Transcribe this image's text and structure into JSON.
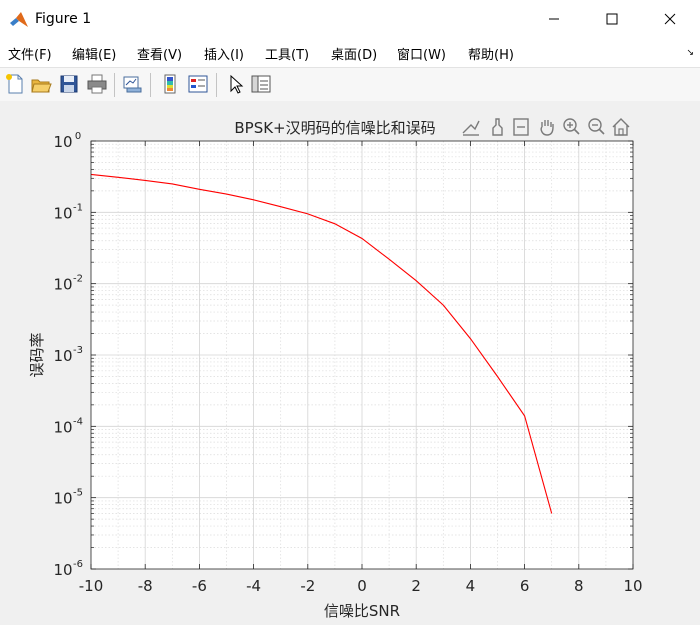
{
  "window": {
    "title": "Figure 1",
    "icon": "matlab-logo-icon",
    "buttons": [
      "minimize-icon",
      "maximize-icon",
      "close-icon"
    ]
  },
  "menu": {
    "items": [
      "文件(F)",
      "编辑(E)",
      "查看(V)",
      "插入(I)",
      "工具(T)",
      "桌面(D)",
      "窗口(W)",
      "帮助(H)"
    ]
  },
  "toolbar": {
    "icons": [
      "new-figure-icon",
      "open-file-icon",
      "save-icon",
      "print-icon",
      "link-plot-icon",
      "colorbar-icon",
      "legend-icon",
      "pointer-icon",
      "property-inspector-icon"
    ]
  },
  "axes_toolbar": {
    "icons": [
      "export-icon",
      "brush-icon",
      "data-tips-icon",
      "pan-icon",
      "zoom-in-icon",
      "zoom-out-icon",
      "home-icon"
    ]
  },
  "colors": {
    "line": "#ff0000",
    "grid": "#dcdcdc",
    "axes_bg": "#ffffff",
    "figure_bg": "#f0f0f0"
  },
  "chart_data": {
    "type": "line",
    "title": "BPSK+汉明码的信噪比和误码",
    "xlabel": "信噪比SNR",
    "ylabel": "误码率",
    "xlim": [
      -10,
      10
    ],
    "ylim": [
      1e-06,
      1
    ],
    "yscale": "log",
    "grid": "on (major and minor)",
    "xticks": [
      "-10",
      "-8",
      "-6",
      "-4",
      "-2",
      "0",
      "2",
      "4",
      "6",
      "8",
      "10"
    ],
    "yticks": [
      {
        "base": "10",
        "exp": "-6"
      },
      {
        "base": "10",
        "exp": "-5"
      },
      {
        "base": "10",
        "exp": "-4"
      },
      {
        "base": "10",
        "exp": "-3"
      },
      {
        "base": "10",
        "exp": "-2"
      },
      {
        "base": "10",
        "exp": "-1"
      },
      {
        "base": "10",
        "exp": "0"
      }
    ],
    "series": [
      {
        "x": [
          -10,
          -9,
          -8,
          -7,
          -6,
          -5,
          -4,
          -3,
          -2,
          -1,
          0,
          1,
          2,
          3,
          4,
          5,
          6,
          7
        ],
        "y": [
          0.34,
          0.31,
          0.28,
          0.25,
          0.21,
          0.18,
          0.15,
          0.12,
          0.095,
          0.069,
          0.043,
          0.022,
          0.011,
          0.005,
          0.0017,
          0.0005,
          0.00014,
          6e-06
        ]
      }
    ]
  }
}
